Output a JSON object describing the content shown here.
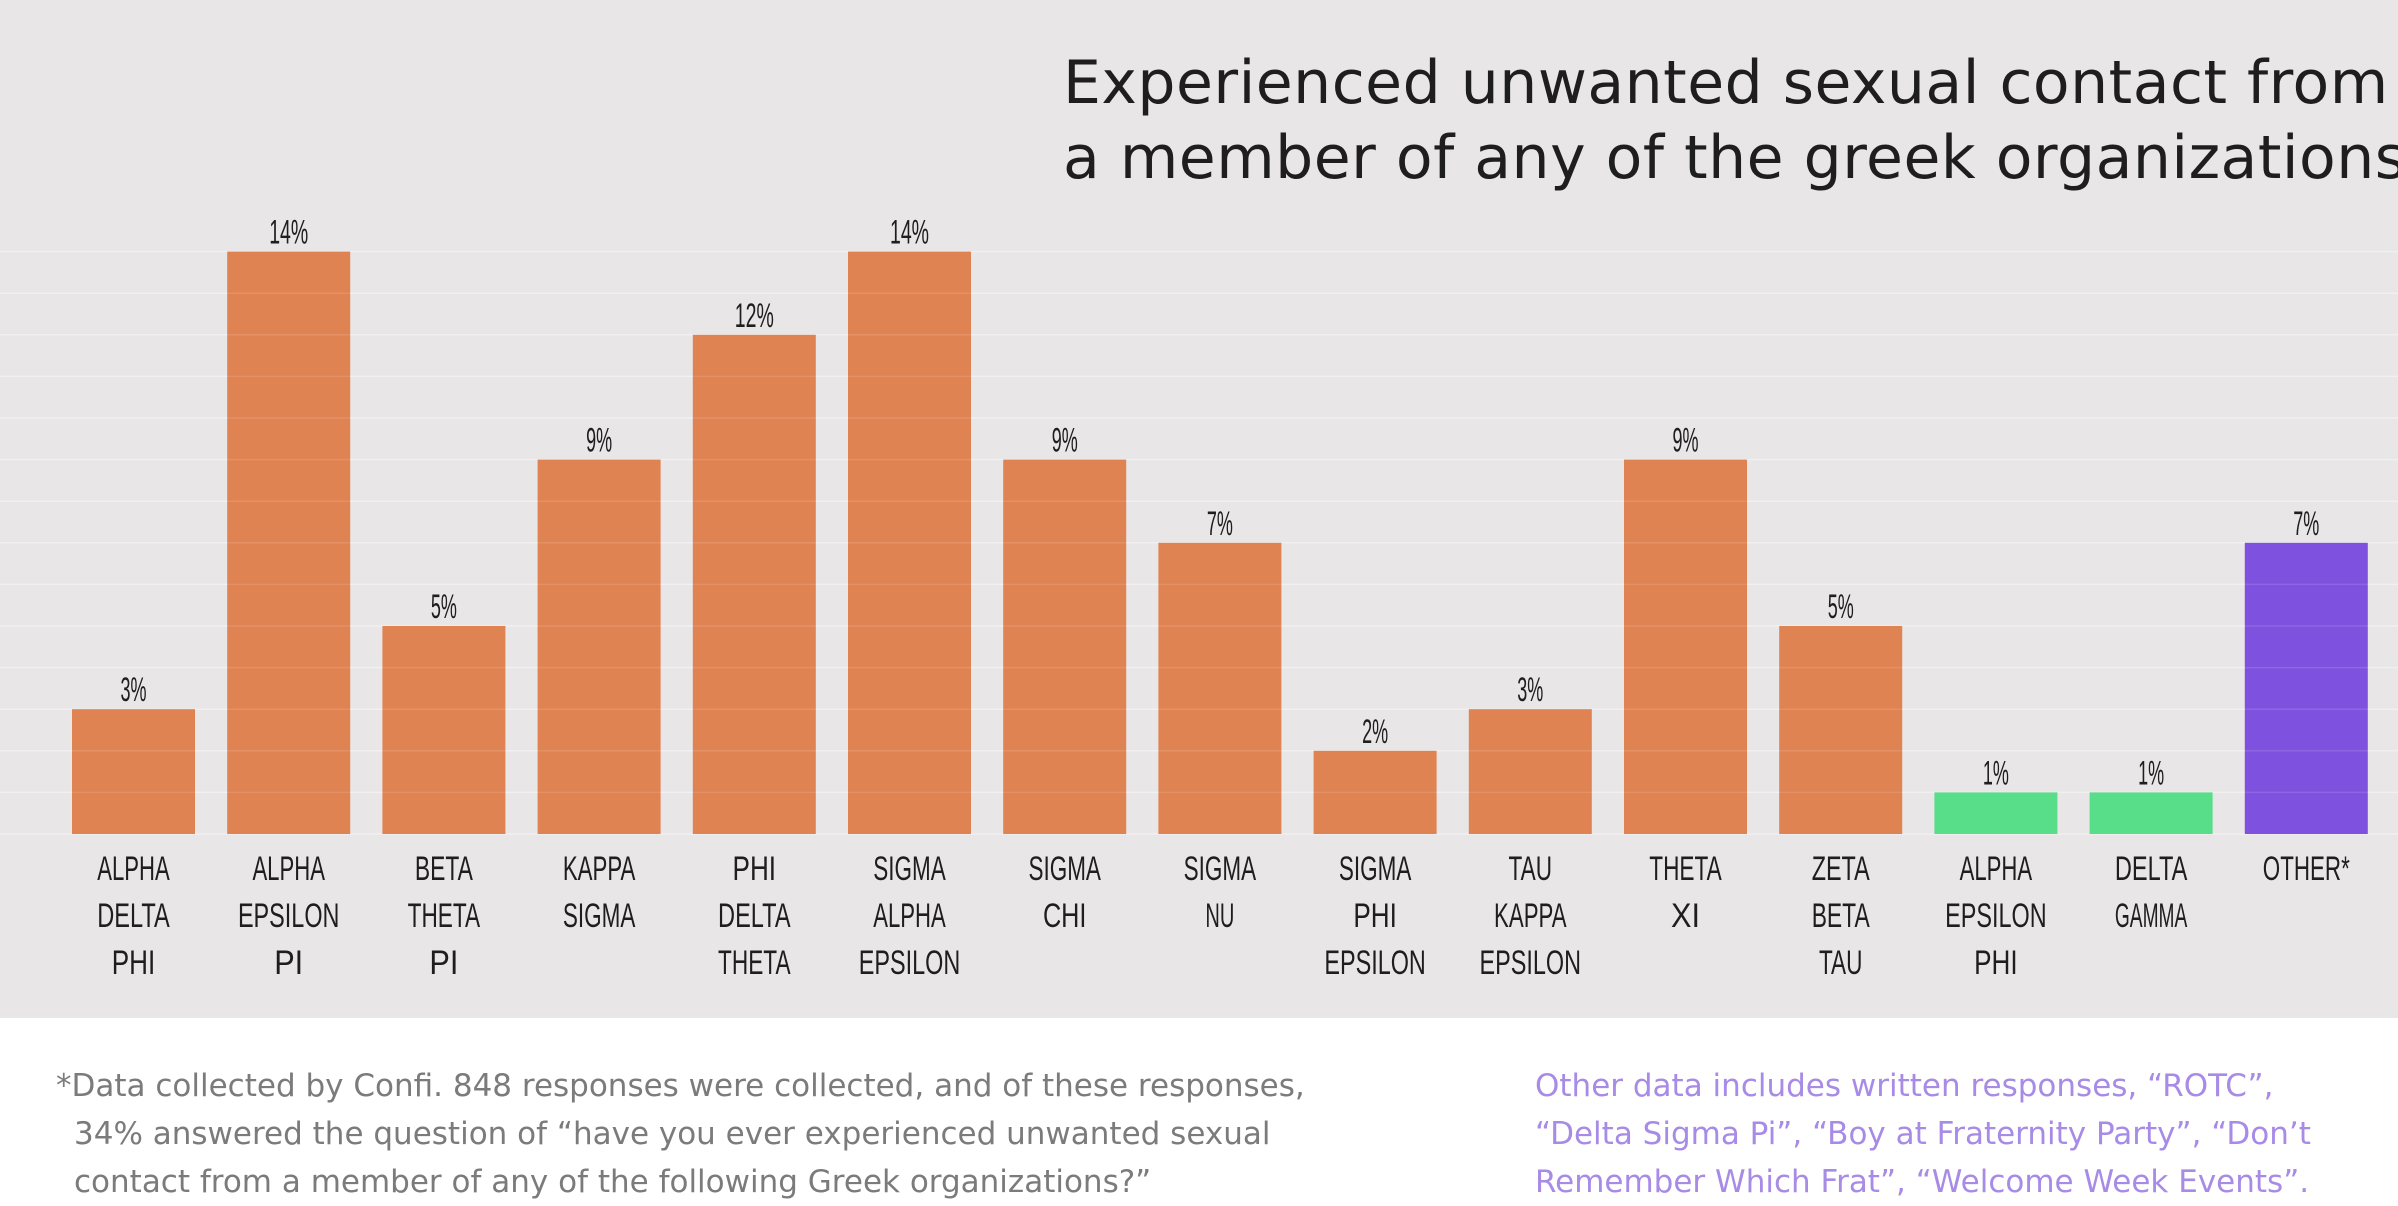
{
  "chart_data": {
    "type": "bar",
    "title_lines": [
      "Experienced unwanted sexual contact from",
      "a member of any of the greek organizations*"
    ],
    "categories": [
      [
        "ALPHA",
        "DELTA",
        "PHI"
      ],
      [
        "ALPHA",
        "EPSILON",
        "PI"
      ],
      [
        "BETA",
        "THETA",
        "PI"
      ],
      [
        "KAPPA",
        "SIGMA"
      ],
      [
        "PHI",
        "DELTA",
        "THETA"
      ],
      [
        "SIGMA",
        "ALPHA",
        "EPSILON"
      ],
      [
        "SIGMA",
        "CHI"
      ],
      [
        "SIGMA",
        "NU"
      ],
      [
        "SIGMA",
        "PHI",
        "EPSILON"
      ],
      [
        "TAU",
        "KAPPA",
        "EPSILON"
      ],
      [
        "THETA",
        "XI"
      ],
      [
        "ZETA",
        "BETA",
        "TAU"
      ],
      [
        "ALPHA",
        "EPSILON",
        "PHI"
      ],
      [
        "DELTA",
        "GAMMA"
      ],
      [
        "OTHER*"
      ]
    ],
    "values": [
      3,
      14,
      5,
      9,
      12,
      14,
      9,
      7,
      2,
      3,
      9,
      5,
      1,
      1,
      7
    ],
    "value_labels": [
      "3%",
      "14%",
      "5%",
      "9%",
      "12%",
      "14%",
      "9%",
      "7%",
      "2%",
      "3%",
      "9%",
      "5%",
      "1%",
      "1%",
      "7%"
    ],
    "groups": [
      "fraternity",
      "fraternity",
      "fraternity",
      "fraternity",
      "fraternity",
      "fraternity",
      "fraternity",
      "fraternity",
      "fraternity",
      "fraternity",
      "fraternity",
      "fraternity",
      "sorority",
      "sorority",
      "other"
    ],
    "group_colors": {
      "fraternity": "#e08352",
      "sorority": "#58dd88",
      "other": "#7e52de"
    },
    "ylim": [
      0,
      15
    ],
    "grid": true,
    "xlabel": "",
    "ylabel": ""
  },
  "footnotes": {
    "left_lines": [
      "*Data collected by Confi. 848 responses were collected, and of these responses,",
      "34% answered the question of “have you ever experienced unwanted sexual",
      "contact from a member of any of the following Greek organizations?”"
    ],
    "right_lines": [
      "Other data includes written responses, “ROTC”,",
      "“Delta Sigma Pi”, “Boy at Fraternity Party”, “Don’t",
      "Remember Which Frat”, “Welcome Week Events”."
    ]
  },
  "colors": {
    "panel_background": "#e8e6e7",
    "title": "#1e1e1e",
    "footnote_left": "#7b7b7b",
    "footnote_right": "#a78be6"
  }
}
